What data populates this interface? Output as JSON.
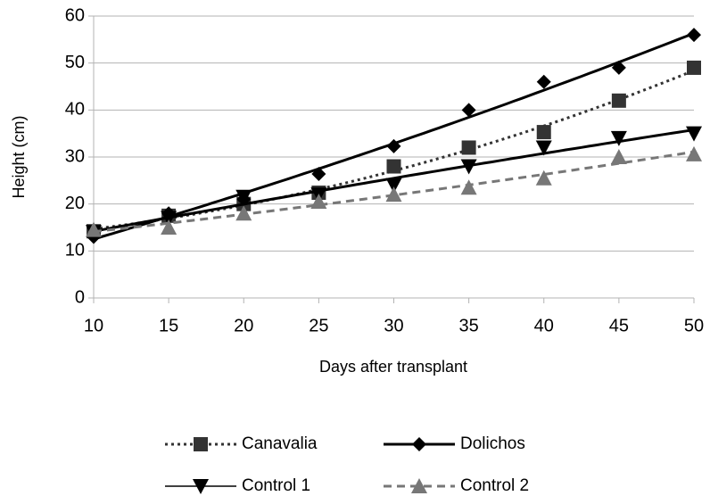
{
  "chart_data": {
    "type": "line",
    "x_label": "Days after transplant",
    "y_label": "Height (cm)",
    "x": [
      10,
      15,
      20,
      25,
      30,
      35,
      40,
      45,
      50
    ],
    "xlim": [
      10,
      50
    ],
    "xticks": [
      10,
      15,
      20,
      25,
      30,
      35,
      40,
      45,
      50
    ],
    "ylim": [
      0,
      60
    ],
    "yticks": [
      0,
      10,
      20,
      30,
      40,
      50,
      60
    ],
    "grid": true,
    "trendline": "polynomial",
    "legend": "bottom",
    "series": [
      {
        "name": "Canavalia",
        "color": "#333333",
        "marker": "square",
        "line_style": "dotted",
        "values": [
          14.2,
          17.5,
          20,
          22.4,
          28,
          32,
          35.3,
          42,
          49
        ]
      },
      {
        "name": "Dolichos",
        "color": "#000000",
        "marker": "diamond",
        "line_style": "solid",
        "values": [
          13,
          18,
          21,
          26.4,
          32.3,
          40,
          46,
          49,
          56
        ]
      },
      {
        "name": "Control 1",
        "color": "#000000",
        "marker": "triangle-down",
        "line_style": "solid",
        "values": [
          14,
          17,
          21.5,
          22,
          24,
          28,
          32,
          34,
          35
        ]
      },
      {
        "name": "Control 2",
        "color": "#777777",
        "marker": "triangle-up",
        "line_style": "dashed",
        "values": [
          14.5,
          15,
          18,
          20.5,
          22,
          23.5,
          25.5,
          30,
          30.6
        ]
      }
    ]
  }
}
